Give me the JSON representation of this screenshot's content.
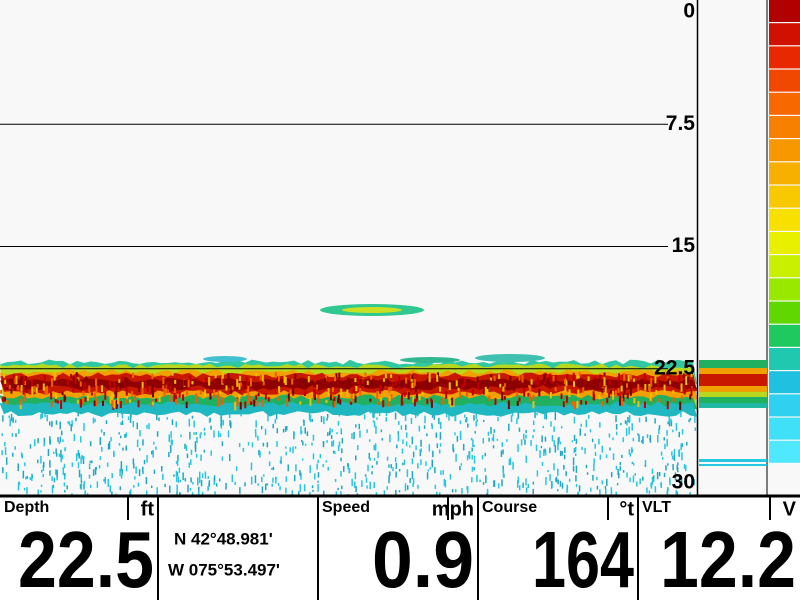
{
  "depth_scale": {
    "range": [
      0,
      30
    ],
    "ticks": [
      0,
      7.5,
      15,
      22.5,
      30
    ]
  },
  "readouts": [
    {
      "label": "Depth",
      "unit": "ft",
      "value": 22.5
    },
    {
      "label": "Speed",
      "unit": "mph",
      "value": 0.9
    },
    {
      "label": "Course",
      "unit": "°t",
      "value": 164
    },
    {
      "label": "VLT",
      "unit": "V",
      "value": 12.2
    }
  ],
  "position": {
    "lat": "N 42°48.981'",
    "lon": "W 075°53.497'"
  }
}
